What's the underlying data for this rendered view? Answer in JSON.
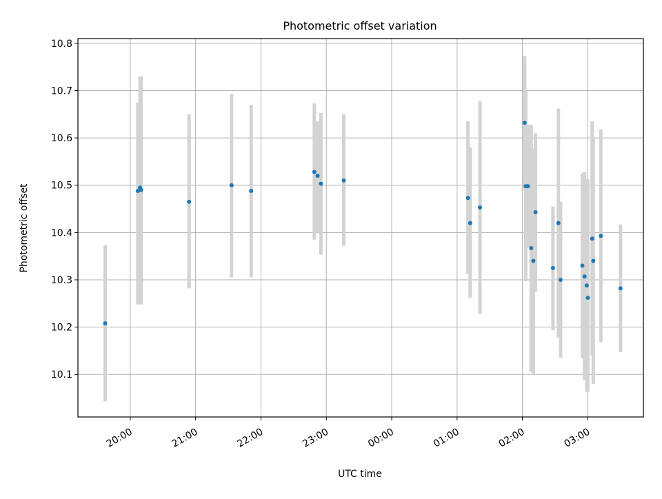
{
  "chart_data": {
    "type": "scatter",
    "title": "Photometric offset variation",
    "xlabel": "UTC time",
    "ylabel": "Photometric offset",
    "x_tick_labels": [
      "20:00",
      "21:00",
      "22:00",
      "23:00",
      "00:00",
      "01:00",
      "02:00",
      "03:00"
    ],
    "y_tick_labels": [
      "10.1",
      "10.2",
      "10.3",
      "10.4",
      "10.5",
      "10.6",
      "10.7",
      "10.8"
    ],
    "x_ticks": [
      "20:00",
      "21:00",
      "22:00",
      "23:00",
      "24:00",
      "25:00",
      "26:00",
      "27:00"
    ],
    "y_ticks": [
      10.1,
      10.2,
      10.3,
      10.4,
      10.5,
      10.6,
      10.7,
      10.8
    ],
    "xlim": [
      "19:12",
      "27:51"
    ],
    "ylim": [
      10.01,
      10.81
    ],
    "grid": true,
    "colors": {
      "point": "#1f77b4",
      "errorbar": "#d3d3d3",
      "grid": "#b0b0b0"
    },
    "points": [
      {
        "x": "19:37",
        "y": 10.208,
        "ylo": 10.043,
        "yhi": 10.373
      },
      {
        "x": "20:07",
        "y": 10.488,
        "ylo": 10.248,
        "yhi": 10.675
      },
      {
        "x": "20:09",
        "y": 10.495,
        "ylo": 10.248,
        "yhi": 10.73
      },
      {
        "x": "20:10",
        "y": 10.49,
        "ylo": 10.248,
        "yhi": 10.73
      },
      {
        "x": "20:54",
        "y": 10.465,
        "ylo": 10.282,
        "yhi": 10.65
      },
      {
        "x": "21:33",
        "y": 10.5,
        "ylo": 10.305,
        "yhi": 10.693
      },
      {
        "x": "21:51",
        "y": 10.488,
        "ylo": 10.305,
        "yhi": 10.67
      },
      {
        "x": "22:49",
        "y": 10.528,
        "ylo": 10.385,
        "yhi": 10.673
      },
      {
        "x": "22:52",
        "y": 10.52,
        "ylo": 10.4,
        "yhi": 10.635
      },
      {
        "x": "22:55",
        "y": 10.503,
        "ylo": 10.353,
        "yhi": 10.653
      },
      {
        "x": "23:16",
        "y": 10.51,
        "ylo": 10.372,
        "yhi": 10.65
      },
      {
        "x": "25:10",
        "y": 10.473,
        "ylo": 10.312,
        "yhi": 10.635
      },
      {
        "x": "25:12",
        "y": 10.42,
        "ylo": 10.262,
        "yhi": 10.58
      },
      {
        "x": "25:21",
        "y": 10.453,
        "ylo": 10.228,
        "yhi": 10.678
      },
      {
        "x": "26:02",
        "y": 10.632,
        "ylo": 10.49,
        "yhi": 10.773
      },
      {
        "x": "26:03",
        "y": 10.498,
        "ylo": 10.297,
        "yhi": 10.7
      },
      {
        "x": "26:05",
        "y": 10.498,
        "ylo": 10.368,
        "yhi": 10.628
      },
      {
        "x": "26:08",
        "y": 10.367,
        "ylo": 10.105,
        "yhi": 10.628
      },
      {
        "x": "26:10",
        "y": 10.34,
        "ylo": 10.102,
        "yhi": 10.578
      },
      {
        "x": "26:12",
        "y": 10.443,
        "ylo": 10.275,
        "yhi": 10.61
      },
      {
        "x": "26:28",
        "y": 10.325,
        "ylo": 10.193,
        "yhi": 10.455
      },
      {
        "x": "26:33",
        "y": 10.42,
        "ylo": 10.178,
        "yhi": 10.662
      },
      {
        "x": "26:35",
        "y": 10.3,
        "ylo": 10.135,
        "yhi": 10.465
      },
      {
        "x": "26:55",
        "y": 10.33,
        "ylo": 10.135,
        "yhi": 10.525
      },
      {
        "x": "26:57",
        "y": 10.307,
        "ylo": 10.088,
        "yhi": 10.528
      },
      {
        "x": "26:59",
        "y": 10.288,
        "ylo": 10.063,
        "yhi": 10.513
      },
      {
        "x": "26:60",
        "y": 10.262,
        "ylo": 10.063,
        "yhi": 10.513
      },
      {
        "x": "27:04",
        "y": 10.387,
        "ylo": 10.14,
        "yhi": 10.635
      },
      {
        "x": "27:05",
        "y": 10.34,
        "ylo": 10.08,
        "yhi": 10.6
      },
      {
        "x": "27:12",
        "y": 10.393,
        "ylo": 10.168,
        "yhi": 10.618
      },
      {
        "x": "27:30",
        "y": 10.282,
        "ylo": 10.147,
        "yhi": 10.417
      }
    ]
  }
}
